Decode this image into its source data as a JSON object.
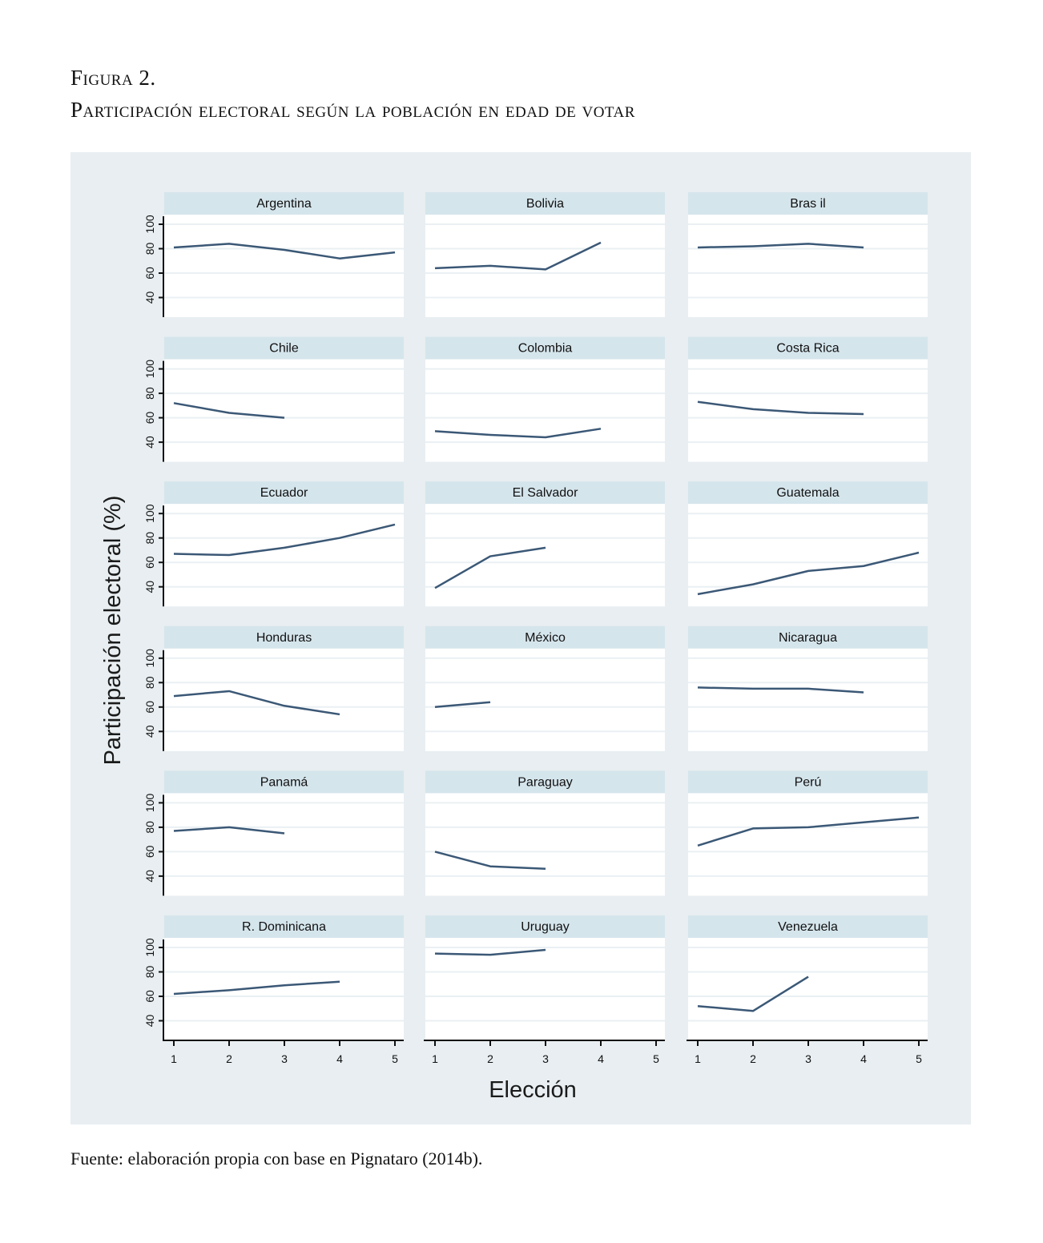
{
  "figure": {
    "label": "Figura 2.",
    "title": "Participación electoral según la población en edad de votar",
    "source": "Fuente: elaboración propia con base en Pignataro (2014b)."
  },
  "colors": {
    "background": "#e8eef1",
    "header": "#d5e5ec",
    "plot": "#ffffff",
    "grid": "#eaf0f3",
    "line": "#3b5876"
  },
  "chart_data": {
    "type": "line",
    "layout": "small-multiples 6x3",
    "xlabel": "Elección",
    "ylabel": "Participación electoral (%)",
    "xlim": [
      1,
      5
    ],
    "ylim": [
      25,
      108
    ],
    "x_ticks": [
      "1",
      "2",
      "3",
      "4",
      "5"
    ],
    "y_ticks": [
      "40",
      "60",
      "80",
      "100"
    ],
    "grid": true,
    "panels": [
      {
        "name": "Argentina",
        "x": [
          1,
          2,
          3,
          4,
          5
        ],
        "y": [
          81,
          84,
          79,
          72,
          77
        ]
      },
      {
        "name": "Bolivia",
        "x": [
          1,
          2,
          3,
          4
        ],
        "y": [
          64,
          66,
          63,
          85
        ]
      },
      {
        "name": "Bras il",
        "x": [
          1,
          2,
          3,
          4
        ],
        "y": [
          81,
          82,
          84,
          81
        ]
      },
      {
        "name": "Chile",
        "x": [
          1,
          2,
          3
        ],
        "y": [
          72,
          64,
          60
        ]
      },
      {
        "name": "Colombia",
        "x": [
          1,
          2,
          3,
          4
        ],
        "y": [
          49,
          46,
          44,
          51
        ]
      },
      {
        "name": "Costa Rica",
        "x": [
          1,
          2,
          3,
          4
        ],
        "y": [
          73,
          67,
          64,
          63
        ]
      },
      {
        "name": "Ecuador",
        "x": [
          1,
          2,
          3,
          4,
          5
        ],
        "y": [
          67,
          66,
          72,
          80,
          91
        ]
      },
      {
        "name": "El Salvador",
        "x": [
          1,
          2,
          3
        ],
        "y": [
          39,
          65,
          72
        ]
      },
      {
        "name": "Guatemala",
        "x": [
          1,
          2,
          3,
          4,
          5
        ],
        "y": [
          34,
          42,
          53,
          57,
          68
        ]
      },
      {
        "name": "Honduras",
        "x": [
          1,
          2,
          3,
          4
        ],
        "y": [
          69,
          73,
          61,
          54
        ]
      },
      {
        "name": "México",
        "x": [
          1,
          2
        ],
        "y": [
          60,
          64
        ]
      },
      {
        "name": "Nicaragua",
        "x": [
          1,
          2,
          3,
          4
        ],
        "y": [
          76,
          75,
          75,
          72
        ]
      },
      {
        "name": "Panamá",
        "x": [
          1,
          2,
          3
        ],
        "y": [
          77,
          80,
          75
        ]
      },
      {
        "name": "Paraguay",
        "x": [
          1,
          2,
          3
        ],
        "y": [
          60,
          48,
          46
        ]
      },
      {
        "name": "Perú",
        "x": [
          1,
          2,
          3,
          4,
          5
        ],
        "y": [
          65,
          79,
          80,
          84,
          88
        ]
      },
      {
        "name": "R. Dominicana",
        "x": [
          1,
          2,
          3,
          4
        ],
        "y": [
          62,
          65,
          69,
          72
        ]
      },
      {
        "name": "Uruguay",
        "x": [
          1,
          2,
          3
        ],
        "y": [
          95,
          94,
          98
        ]
      },
      {
        "name": "Venezuela",
        "x": [
          1,
          2,
          3
        ],
        "y": [
          52,
          48,
          76
        ]
      }
    ]
  }
}
